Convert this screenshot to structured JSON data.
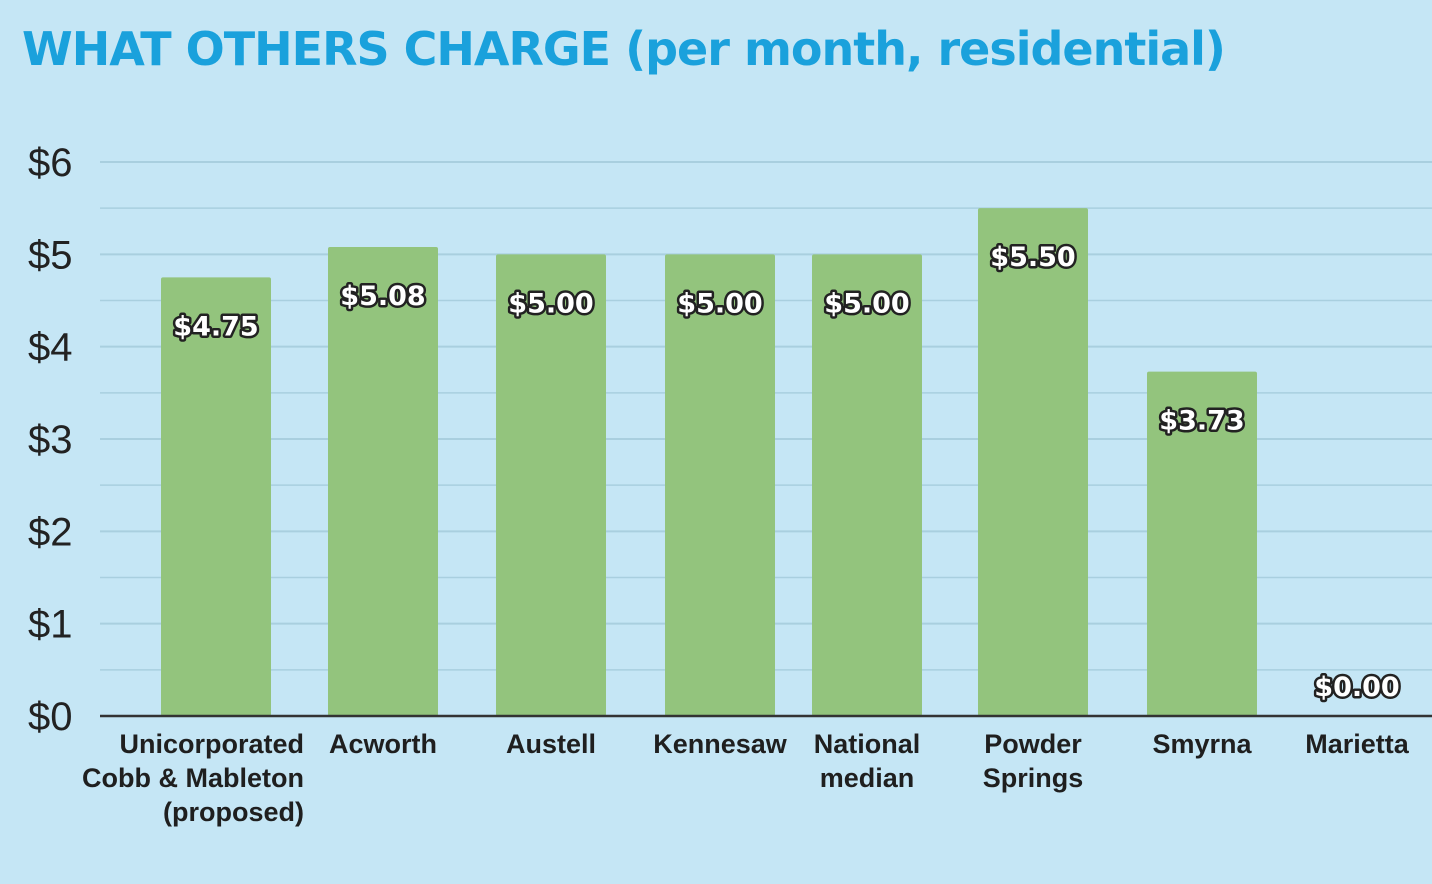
{
  "chart_data": {
    "type": "bar",
    "title": "WHAT OTHERS CHARGE (per month, residential)",
    "categories": [
      [
        "Unicorporated",
        "Cobb & Mableton",
        "(proposed)"
      ],
      [
        "Acworth"
      ],
      [
        "Austell"
      ],
      [
        "Kennesaw"
      ],
      [
        "National",
        "median"
      ],
      [
        "Powder",
        "Springs"
      ],
      [
        "Smyrna"
      ],
      [
        "Marietta"
      ]
    ],
    "values": [
      4.75,
      5.08,
      5.0,
      5.0,
      5.0,
      5.5,
      3.73,
      0.0
    ],
    "data_labels": [
      "$4.75",
      "$5.08",
      "$5.00",
      "$5.00",
      "$5.00",
      "$5.50",
      "$3.73",
      "$0.00"
    ],
    "y_tick_labels": [
      "$0",
      "$1",
      "$2",
      "$3",
      "$4",
      "$5",
      "$6"
    ],
    "ylim": [
      0,
      6
    ],
    "grid": true,
    "colors": {
      "background": "#c5e6f5",
      "bar": "#93c47d",
      "title": "#1aa1dc",
      "grid": "#a9cfdf",
      "axis": "#333333"
    }
  }
}
